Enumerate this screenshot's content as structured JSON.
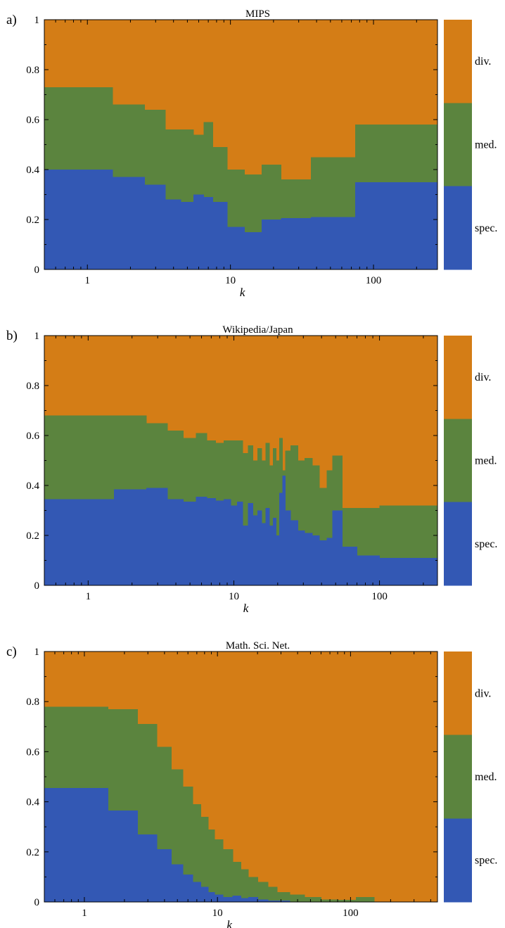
{
  "colors": {
    "spec": "#3358b4",
    "med": "#5b843e",
    "div": "#d47d16"
  },
  "legend": {
    "div": "div.",
    "med": "med.",
    "spec": "spec."
  },
  "chart_data": [
    {
      "type": "area",
      "panel_label": "a)",
      "title": "MIPS",
      "xlabel": "k",
      "ylabel": "",
      "xscale": "log",
      "xlim": [
        0.5,
        280
      ],
      "ylim": [
        0,
        1
      ],
      "xticks": [
        "1",
        "10",
        "100"
      ],
      "yticks": [
        "0",
        "0.2",
        "0.4",
        "0.6",
        "0.8",
        "1"
      ],
      "series": [
        {
          "name": "spec.",
          "key": "spec",
          "x": [
            0.5,
            1.5,
            2.5,
            3.5,
            4.5,
            5.5,
            6.5,
            7.5,
            9.5,
            12.5,
            16.5,
            22.5,
            36.5,
            74.5,
            280
          ],
          "bottom": [
            0,
            0,
            0,
            0,
            0,
            0,
            0,
            0,
            0,
            0,
            0,
            0,
            0,
            0
          ],
          "top": [
            0.4,
            0.37,
            0.34,
            0.28,
            0.27,
            0.3,
            0.29,
            0.27,
            0.17,
            0.15,
            0.2,
            0.205,
            0.21,
            0.35
          ]
        },
        {
          "name": "med.",
          "key": "med",
          "x": [
            0.5,
            1.5,
            2.5,
            3.5,
            4.5,
            5.5,
            6.5,
            7.5,
            9.5,
            12.5,
            16.5,
            22.5,
            36.5,
            74.5,
            280
          ],
          "bottom": [
            0.4,
            0.37,
            0.34,
            0.28,
            0.27,
            0.3,
            0.29,
            0.27,
            0.17,
            0.15,
            0.2,
            0.205,
            0.21,
            0.35
          ],
          "top": [
            0.73,
            0.66,
            0.64,
            0.56,
            0.56,
            0.54,
            0.59,
            0.49,
            0.4,
            0.38,
            0.42,
            0.36,
            0.45,
            0.58
          ]
        },
        {
          "name": "div.",
          "key": "div",
          "x": [
            0.5,
            280
          ],
          "bottom": [
            0
          ],
          "top": [
            1
          ]
        }
      ]
    },
    {
      "type": "area",
      "panel_label": "b)",
      "title": "Wikipedia/Japan",
      "xlabel": "k",
      "ylabel": "",
      "xscale": "log",
      "xlim": [
        0.5,
        250
      ],
      "ylim": [
        0,
        1
      ],
      "xticks": [
        "1",
        "10",
        "100"
      ],
      "yticks": [
        "0",
        "0.2",
        "0.4",
        "0.6",
        "0.8",
        "1"
      ],
      "series": [
        {
          "name": "spec.",
          "key": "spec",
          "x": [
            0.5,
            1.5,
            2.5,
            3.5,
            4.5,
            5.5,
            6.5,
            7.5,
            8.5,
            9.5,
            10.5,
            11.5,
            12.5,
            13.5,
            14.5,
            15.5,
            16.5,
            17.5,
            18.5,
            19.5,
            20.5,
            21.5,
            22.5,
            24.5,
            27.5,
            30.5,
            34.5,
            38.5,
            43.5,
            47.5,
            55.5,
            70,
            100,
            130,
            250
          ],
          "bottom": [
            0,
            0,
            0,
            0,
            0,
            0,
            0,
            0,
            0,
            0,
            0,
            0,
            0,
            0,
            0,
            0,
            0,
            0,
            0,
            0,
            0,
            0,
            0,
            0,
            0,
            0,
            0,
            0,
            0,
            0,
            0,
            0,
            0,
            0
          ],
          "top": [
            0.345,
            0.385,
            0.39,
            0.345,
            0.335,
            0.355,
            0.35,
            0.34,
            0.345,
            0.32,
            0.335,
            0.24,
            0.33,
            0.28,
            0.3,
            0.25,
            0.31,
            0.24,
            0.27,
            0.2,
            0.37,
            0.44,
            0.3,
            0.26,
            0.22,
            0.21,
            0.2,
            0.18,
            0.19,
            0.3,
            0.155,
            0.12,
            0.11,
            0.11
          ]
        },
        {
          "name": "med.",
          "key": "med",
          "x": [
            0.5,
            1.5,
            2.5,
            3.5,
            4.5,
            5.5,
            6.5,
            7.5,
            8.5,
            9.5,
            10.5,
            11.5,
            12.5,
            13.5,
            14.5,
            15.5,
            16.5,
            17.5,
            18.5,
            19.5,
            20.5,
            21.5,
            22.5,
            24.5,
            27.5,
            30.5,
            34.5,
            38.5,
            43.5,
            47.5,
            55.5,
            70,
            100,
            130,
            250
          ],
          "bottom": [
            0.345,
            0.385,
            0.39,
            0.345,
            0.335,
            0.355,
            0.35,
            0.34,
            0.345,
            0.32,
            0.335,
            0.24,
            0.33,
            0.28,
            0.3,
            0.25,
            0.31,
            0.24,
            0.27,
            0.2,
            0.37,
            0.44,
            0.3,
            0.26,
            0.22,
            0.21,
            0.2,
            0.18,
            0.19,
            0.3,
            0.155,
            0.12,
            0.11,
            0.11
          ],
          "top": [
            0.68,
            0.68,
            0.65,
            0.62,
            0.59,
            0.61,
            0.58,
            0.57,
            0.58,
            0.58,
            0.58,
            0.53,
            0.56,
            0.5,
            0.55,
            0.5,
            0.57,
            0.48,
            0.55,
            0.5,
            0.59,
            0.46,
            0.54,
            0.56,
            0.5,
            0.51,
            0.48,
            0.39,
            0.46,
            0.52,
            0.31,
            0.31,
            0.32,
            0.32
          ]
        },
        {
          "name": "div.",
          "key": "div",
          "x": [
            0.5,
            250
          ],
          "bottom": [
            0
          ],
          "top": [
            1
          ]
        }
      ]
    },
    {
      "type": "area",
      "panel_label": "c)",
      "title": "Math. Sci. Net.",
      "xlabel": "k",
      "ylabel": "",
      "xscale": "log",
      "xlim": [
        0.5,
        450
      ],
      "ylim": [
        0,
        1
      ],
      "xticks": [
        "1",
        "10",
        "100"
      ],
      "yticks": [
        "0",
        "0.2",
        "0.4",
        "0.6",
        "0.8",
        "1"
      ],
      "series": [
        {
          "name": "spec.",
          "key": "spec",
          "x": [
            0.5,
            1.5,
            2.5,
            3.5,
            4.5,
            5.5,
            6.5,
            7.5,
            8.5,
            9.5,
            11,
            13,
            15,
            17,
            20,
            24,
            28,
            35,
            45,
            60,
            80,
            110,
            150,
            450
          ],
          "bottom": [
            0,
            0,
            0,
            0,
            0,
            0,
            0,
            0,
            0,
            0,
            0,
            0,
            0,
            0,
            0,
            0,
            0,
            0,
            0,
            0,
            0,
            0,
            0
          ],
          "top": [
            0.455,
            0.365,
            0.27,
            0.21,
            0.15,
            0.11,
            0.08,
            0.06,
            0.04,
            0.03,
            0.02,
            0.025,
            0.015,
            0.02,
            0.01,
            0.005,
            0.005,
            0,
            0,
            0,
            0,
            0,
            0
          ]
        },
        {
          "name": "med.",
          "key": "med",
          "x": [
            0.5,
            1.5,
            2.5,
            3.5,
            4.5,
            5.5,
            6.5,
            7.5,
            8.5,
            9.5,
            11,
            13,
            15,
            17,
            20,
            24,
            28,
            35,
            45,
            60,
            80,
            110,
            150,
            450
          ],
          "bottom": [
            0.455,
            0.365,
            0.27,
            0.21,
            0.15,
            0.11,
            0.08,
            0.06,
            0.04,
            0.03,
            0.02,
            0.025,
            0.015,
            0.02,
            0.01,
            0.005,
            0.005,
            0,
            0,
            0,
            0,
            0,
            0
          ],
          "top": [
            0.78,
            0.77,
            0.71,
            0.62,
            0.53,
            0.46,
            0.39,
            0.34,
            0.29,
            0.25,
            0.21,
            0.16,
            0.13,
            0.1,
            0.08,
            0.06,
            0.04,
            0.03,
            0.02,
            0.01,
            0.008,
            0.02,
            0
          ]
        },
        {
          "name": "div.",
          "key": "div",
          "x": [
            0.5,
            450
          ],
          "bottom": [
            0
          ],
          "top": [
            1
          ]
        }
      ]
    }
  ]
}
